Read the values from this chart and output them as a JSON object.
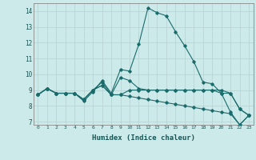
{
  "xlabel": "Humidex (Indice chaleur)",
  "xlim": [
    -0.5,
    23.5
  ],
  "ylim": [
    6.8,
    14.5
  ],
  "xtick_labels": [
    "0",
    "1",
    "2",
    "3",
    "4",
    "5",
    "6",
    "7",
    "8",
    "9",
    "10",
    "11",
    "12",
    "13",
    "14",
    "15",
    "16",
    "17",
    "18",
    "19",
    "20",
    "21",
    "22",
    "23"
  ],
  "ytick_values": [
    7,
    8,
    9,
    10,
    11,
    12,
    13,
    14
  ],
  "bg_color": "#cdeaea",
  "grid_color": "#b8d4d4",
  "line_color": "#1a6b6b",
  "lines": [
    [
      8.7,
      9.1,
      8.8,
      8.8,
      8.8,
      8.3,
      8.9,
      9.6,
      8.8,
      10.3,
      10.2,
      11.9,
      14.2,
      13.9,
      13.7,
      12.7,
      11.8,
      10.8,
      9.5,
      9.4,
      8.8,
      7.6,
      6.8,
      7.4
    ],
    [
      8.7,
      9.1,
      8.8,
      8.8,
      8.8,
      8.4,
      9.0,
      9.5,
      8.7,
      9.8,
      9.6,
      9.1,
      9.0,
      9.0,
      9.0,
      9.0,
      9.0,
      9.0,
      9.0,
      9.0,
      8.8,
      8.8,
      7.8,
      7.4
    ],
    [
      8.7,
      9.1,
      8.8,
      8.8,
      8.8,
      8.4,
      9.0,
      9.3,
      8.7,
      8.7,
      8.6,
      8.5,
      8.4,
      8.3,
      8.2,
      8.1,
      8.0,
      7.9,
      7.8,
      7.7,
      7.6,
      7.5,
      6.8,
      7.4
    ],
    [
      8.7,
      9.1,
      8.8,
      8.8,
      8.8,
      8.4,
      9.0,
      9.3,
      8.7,
      8.7,
      9.0,
      9.0,
      9.0,
      9.0,
      9.0,
      9.0,
      9.0,
      9.0,
      9.0,
      9.0,
      9.0,
      8.8,
      7.8,
      7.4
    ]
  ]
}
